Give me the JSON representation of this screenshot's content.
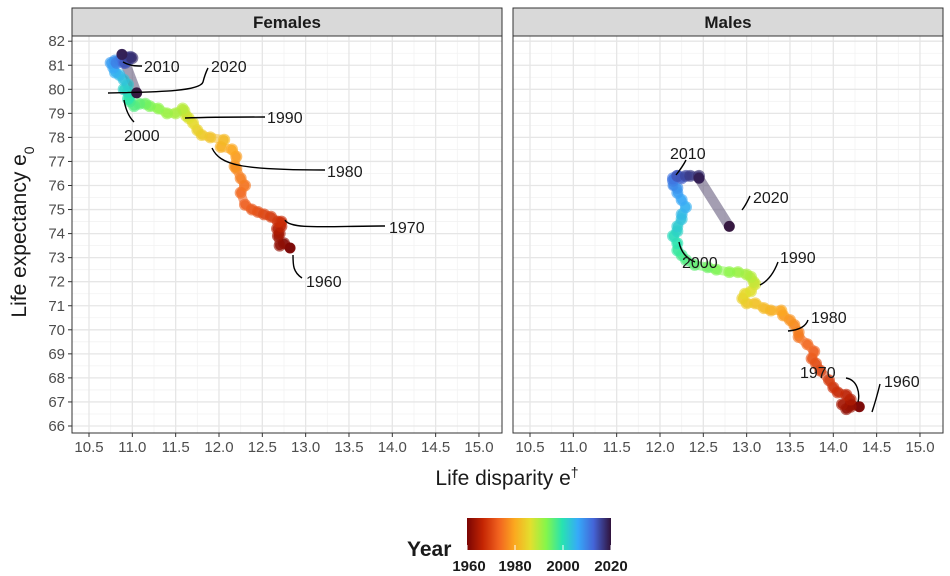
{
  "chart_data": {
    "type": "scatter",
    "facets": [
      "Females",
      "Males"
    ],
    "xlabel": "Life disparity e",
    "xlabel_sup": "†",
    "ylabel": "Life expectancy e",
    "ylabel_sub": "0",
    "xlim": [
      10.4,
      15.2
    ],
    "ylim": [
      65.9,
      82.2
    ],
    "xticks": [
      10.5,
      11.0,
      11.5,
      12.0,
      12.5,
      13.0,
      13.5,
      14.0,
      14.5,
      15.0
    ],
    "yticks": [
      66,
      67,
      68,
      69,
      70,
      71,
      72,
      73,
      74,
      75,
      76,
      77,
      78,
      79,
      80,
      81,
      82
    ],
    "grid": true,
    "color_scale": {
      "title": "Year",
      "range": [
        1960,
        2020
      ],
      "ticks": [
        1960,
        1980,
        2000,
        2020
      ],
      "colors": [
        "#7a0403",
        "#c42503",
        "#f1621f",
        "#fba81f",
        "#e3df2e",
        "#85f64a",
        "#28e3b0",
        "#36aaf9",
        "#4464d7",
        "#30123b"
      ]
    },
    "series": [
      {
        "name": "Females",
        "years": [
          1960,
          1961,
          1962,
          1963,
          1964,
          1965,
          1966,
          1967,
          1968,
          1969,
          1970,
          1971,
          1972,
          1973,
          1974,
          1975,
          1976,
          1977,
          1978,
          1979,
          1980,
          1981,
          1982,
          1983,
          1984,
          1985,
          1986,
          1987,
          1988,
          1989,
          1990,
          1991,
          1992,
          1993,
          1994,
          1995,
          1996,
          1997,
          1998,
          1999,
          2000,
          2001,
          2002,
          2003,
          2004,
          2005,
          2006,
          2007,
          2008,
          2009,
          2010,
          2011,
          2012,
          2013,
          2014,
          2015,
          2016,
          2017,
          2018,
          2019,
          2020
        ],
        "x": [
          12.82,
          12.75,
          12.7,
          12.68,
          12.7,
          12.67,
          12.72,
          12.72,
          12.68,
          12.6,
          12.52,
          12.45,
          12.38,
          12.3,
          12.25,
          12.3,
          12.25,
          12.2,
          12.18,
          12.2,
          12.15,
          12.02,
          12.06,
          11.9,
          11.8,
          11.75,
          11.7,
          11.65,
          11.62,
          11.6,
          11.58,
          11.5,
          11.4,
          11.3,
          11.2,
          11.15,
          11.08,
          11.02,
          10.97,
          10.97,
          10.95,
          10.95,
          10.9,
          10.95,
          10.9,
          10.85,
          10.8,
          10.78,
          10.75,
          10.8,
          10.85,
          10.82,
          10.88,
          10.9,
          10.95,
          10.92,
          10.95,
          10.98,
          11.0,
          10.88,
          11.05
        ],
        "y": [
          73.4,
          73.6,
          73.5,
          73.9,
          74.0,
          74.2,
          74.3,
          74.5,
          74.5,
          74.7,
          74.8,
          74.9,
          75.0,
          75.2,
          75.7,
          76.0,
          76.3,
          76.7,
          76.8,
          77.2,
          77.5,
          77.6,
          77.9,
          78.0,
          78.1,
          78.3,
          78.6,
          78.8,
          78.9,
          79.1,
          79.2,
          79.0,
          79.0,
          79.2,
          79.3,
          79.4,
          79.4,
          79.3,
          79.5,
          79.7,
          79.6,
          79.9,
          80.0,
          80.2,
          80.4,
          80.6,
          80.7,
          80.9,
          81.1,
          81.2,
          81.2,
          81.1,
          81.3,
          81.1,
          81.2,
          81.1,
          81.3,
          81.35,
          81.3,
          81.45,
          79.85
        ]
      },
      {
        "name": "Males",
        "years": [
          1960,
          1961,
          1962,
          1963,
          1964,
          1965,
          1966,
          1967,
          1968,
          1969,
          1970,
          1971,
          1972,
          1973,
          1974,
          1975,
          1976,
          1977,
          1978,
          1979,
          1980,
          1981,
          1982,
          1983,
          1984,
          1985,
          1986,
          1987,
          1988,
          1989,
          1990,
          1991,
          1992,
          1993,
          1994,
          1995,
          1996,
          1997,
          1998,
          1999,
          2000,
          2001,
          2002,
          2003,
          2004,
          2005,
          2006,
          2007,
          2008,
          2009,
          2010,
          2011,
          2012,
          2013,
          2014,
          2015,
          2016,
          2017,
          2018,
          2019,
          2020
        ],
        "x": [
          14.3,
          14.2,
          14.15,
          14.2,
          14.1,
          14.2,
          14.15,
          14.05,
          14.0,
          13.95,
          13.85,
          13.8,
          13.75,
          13.78,
          13.7,
          13.6,
          13.6,
          13.55,
          13.5,
          13.42,
          13.4,
          13.28,
          13.2,
          13.1,
          13.0,
          12.95,
          12.98,
          13.05,
          13.1,
          13.08,
          13.05,
          13.0,
          12.9,
          12.8,
          12.65,
          12.55,
          12.4,
          12.3,
          12.25,
          12.2,
          12.2,
          12.15,
          12.2,
          12.2,
          12.25,
          12.25,
          12.3,
          12.25,
          12.2,
          12.2,
          12.15,
          12.15,
          12.15,
          12.2,
          12.25,
          12.2,
          12.3,
          12.35,
          12.45,
          12.45,
          12.8
        ],
        "y": [
          66.8,
          66.9,
          66.7,
          66.8,
          66.9,
          67.1,
          67.3,
          67.4,
          67.6,
          67.9,
          68.3,
          68.6,
          68.8,
          69.1,
          69.4,
          69.7,
          69.9,
          70.2,
          70.4,
          70.6,
          70.8,
          70.8,
          70.9,
          71.1,
          71.1,
          71.3,
          71.5,
          71.6,
          71.9,
          72.0,
          72.2,
          72.3,
          72.4,
          72.4,
          72.5,
          72.6,
          72.7,
          72.9,
          73.1,
          73.3,
          73.6,
          73.9,
          74.1,
          74.3,
          74.6,
          74.8,
          75.1,
          75.4,
          75.7,
          75.9,
          76.0,
          76.2,
          76.3,
          76.4,
          76.3,
          76.4,
          76.4,
          76.4,
          76.4,
          76.3,
          74.3
        ]
      }
    ],
    "annotations": [
      {
        "text": "2010",
        "series": "Females"
      },
      {
        "text": "2020",
        "series": "Females"
      },
      {
        "text": "2000",
        "series": "Females"
      },
      {
        "text": "1990",
        "series": "Females"
      },
      {
        "text": "1980",
        "series": "Females"
      },
      {
        "text": "1970",
        "series": "Females"
      },
      {
        "text": "1960",
        "series": "Females"
      },
      {
        "text": "2010",
        "series": "Males"
      },
      {
        "text": "2020",
        "series": "Males"
      },
      {
        "text": "2000",
        "series": "Males"
      },
      {
        "text": "1990",
        "series": "Males"
      },
      {
        "text": "1980",
        "series": "Males"
      },
      {
        "text": "1970",
        "series": "Males"
      },
      {
        "text": "1960",
        "series": "Males"
      }
    ]
  }
}
